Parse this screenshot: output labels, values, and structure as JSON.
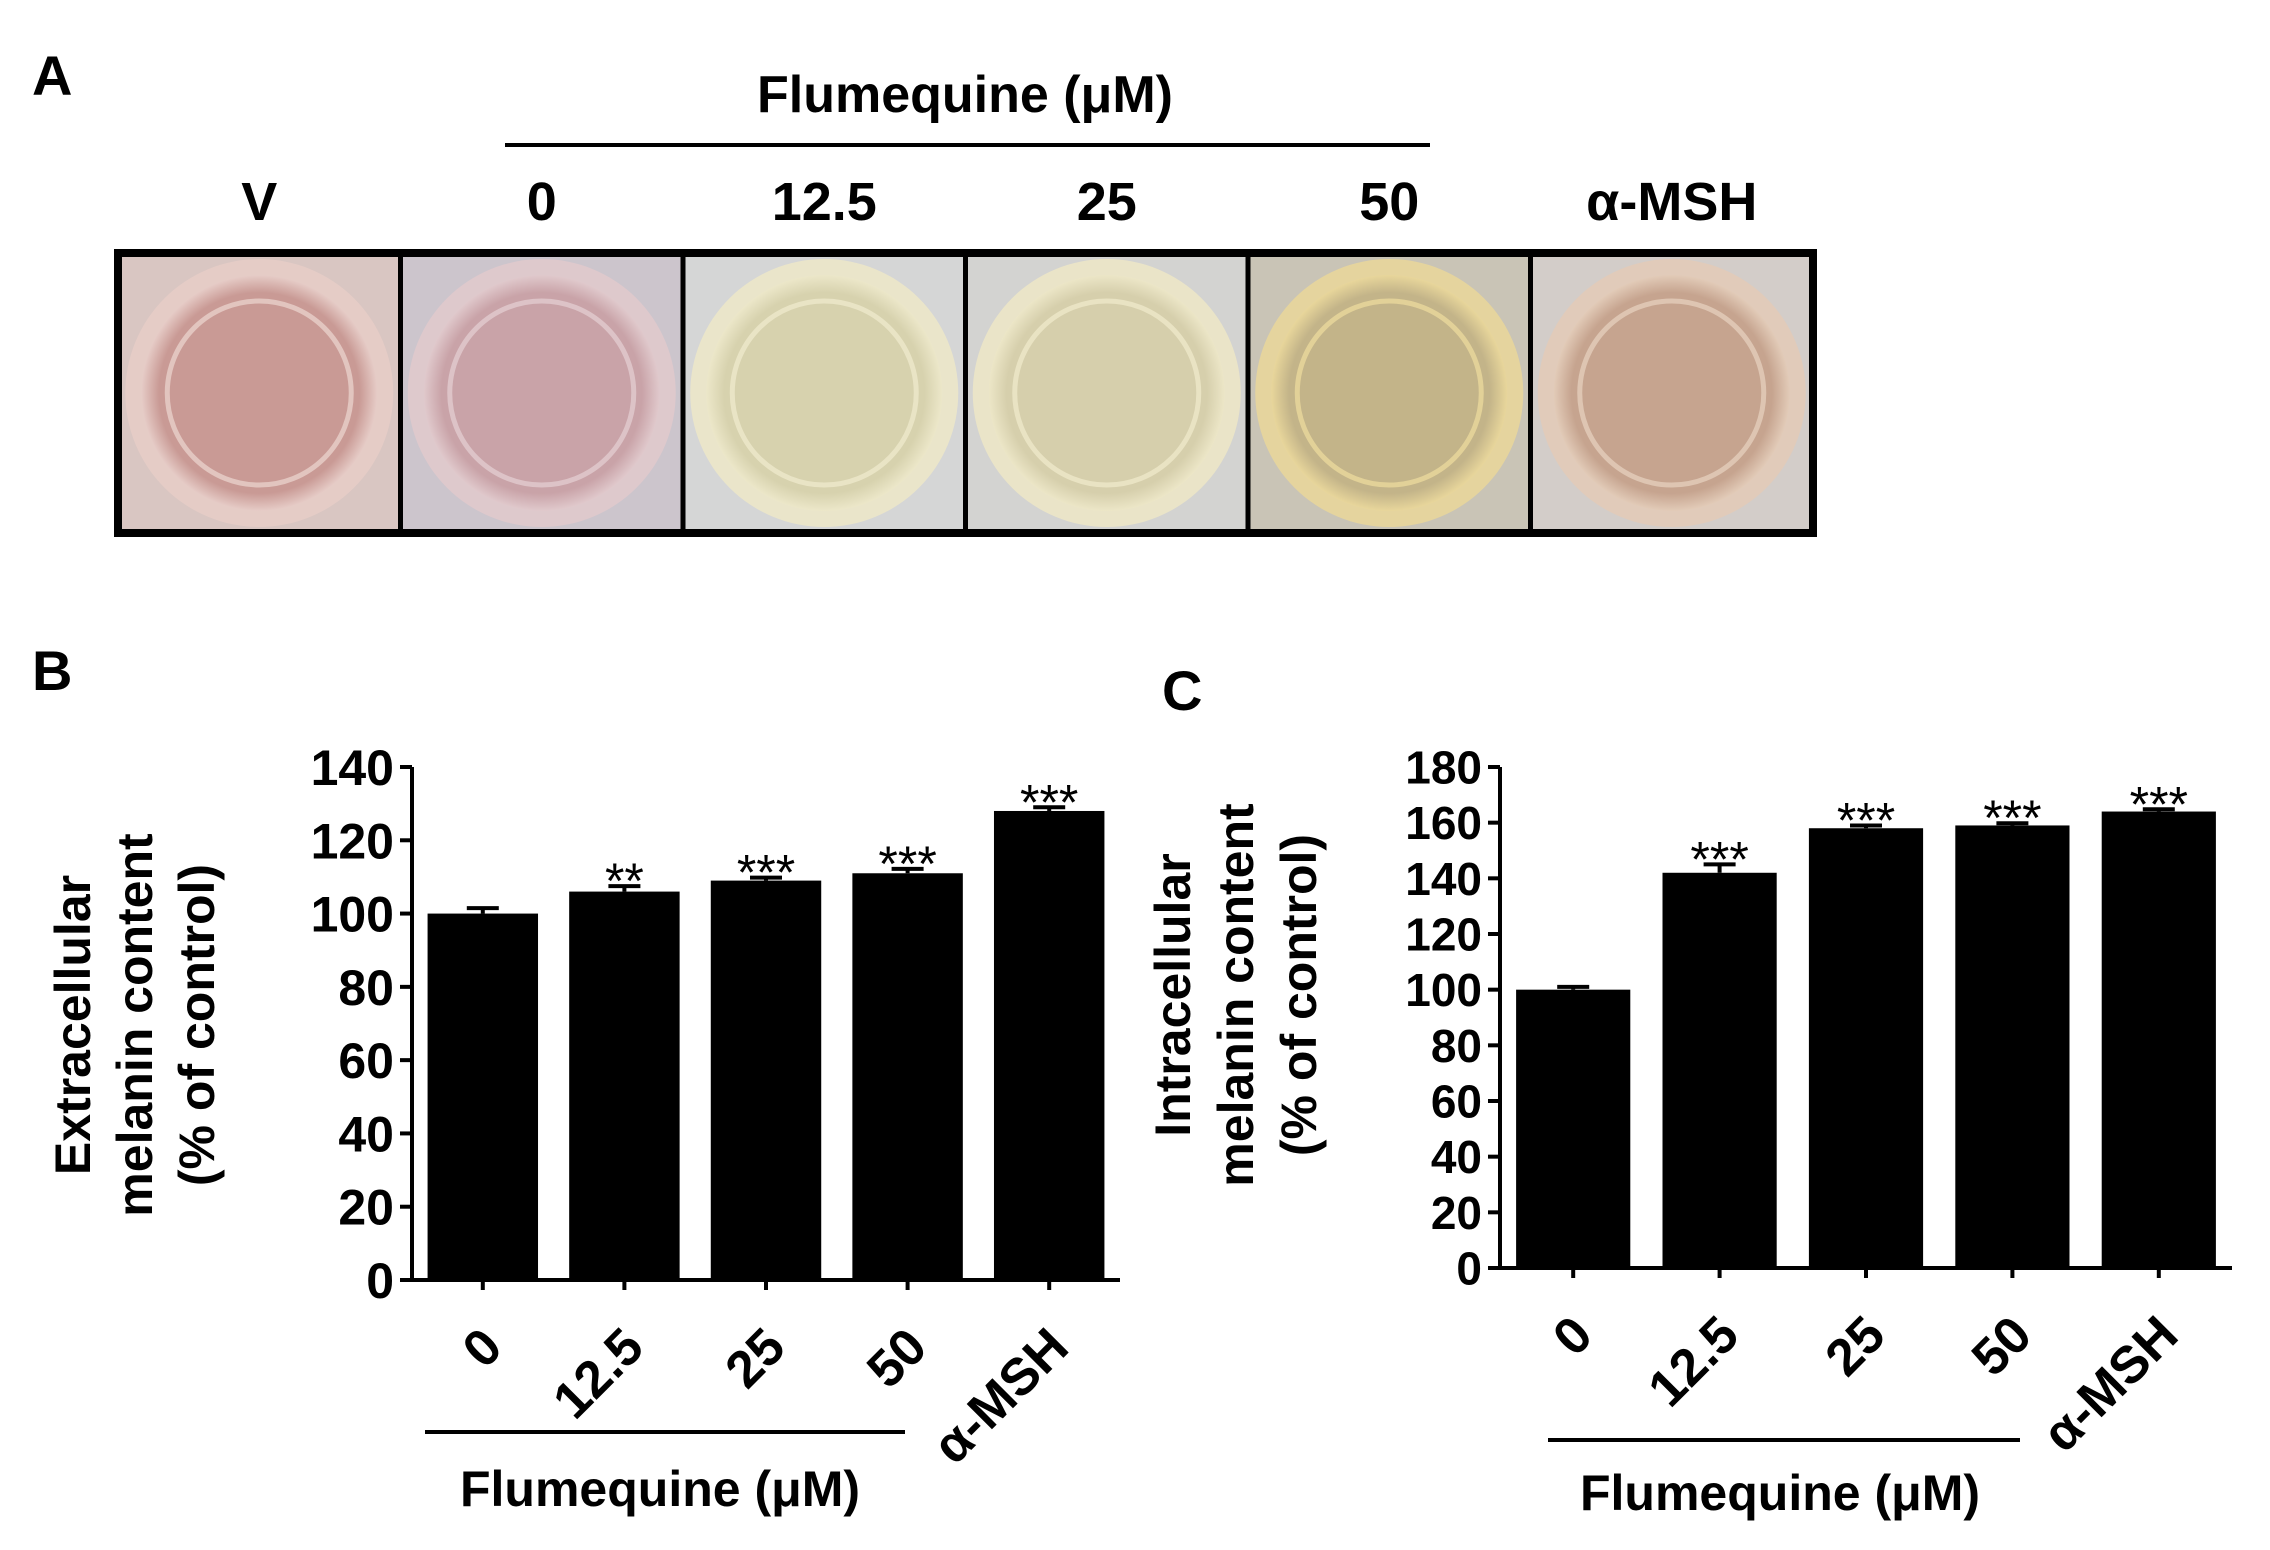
{
  "panel_a": {
    "letter": "A",
    "group_label": "Flumequine (μM)",
    "wells": [
      {
        "label": "V",
        "fill": "#c99a95",
        "rim": "#e6ccc7",
        "bg": "#d9c6c2"
      },
      {
        "label": "0",
        "fill": "#c9a3a8",
        "rim": "#e0c9cc",
        "bg": "#ccc5cc"
      },
      {
        "label": "12.5",
        "fill": "#d7d2ae",
        "rim": "#ece7c9",
        "bg": "#d5d6d6"
      },
      {
        "label": "25",
        "fill": "#d6cfac",
        "rim": "#ece6c7",
        "bg": "#d3d3d1"
      },
      {
        "label": "50",
        "fill": "#c3b489",
        "rim": "#e8d69b",
        "bg": "#c9c4b6"
      },
      {
        "label": "α-MSH",
        "fill": "#c6a48f",
        "rim": "#e2cbb8",
        "bg": "#d3cdc9"
      }
    ]
  },
  "chart_data": [
    {
      "panel": "B",
      "type": "bar",
      "ylabel_lines": [
        "Extracellular",
        "melanin content",
        "(% of control)"
      ],
      "categories": [
        "0",
        "12.5",
        "25",
        "50",
        "α-MSH"
      ],
      "values": [
        100,
        106,
        109,
        111,
        128
      ],
      "errors": [
        1.5,
        1.5,
        0.8,
        1.2,
        1.0
      ],
      "significance": [
        "",
        "**",
        "***",
        "***",
        "***"
      ],
      "ylim": [
        0,
        140
      ],
      "yticks": [
        0,
        20,
        40,
        60,
        80,
        100,
        120,
        140
      ],
      "group_label": "Flumequine (μM)",
      "bar_color": "#000000"
    },
    {
      "panel": "C",
      "type": "bar",
      "ylabel_lines": [
        "Intracellular",
        "melanin content",
        "(% of control)"
      ],
      "categories": [
        "0",
        "12.5",
        "25",
        "50",
        "α-MSH"
      ],
      "values": [
        100,
        142,
        158,
        159,
        164
      ],
      "errors": [
        1.0,
        3.0,
        1.0,
        0.8,
        0.8
      ],
      "significance": [
        "",
        "***",
        "***",
        "***",
        "***"
      ],
      "ylim": [
        0,
        180
      ],
      "yticks": [
        0,
        20,
        40,
        60,
        80,
        100,
        120,
        140,
        160,
        180
      ],
      "group_label": "Flumequine (μM)",
      "bar_color": "#000000"
    }
  ]
}
